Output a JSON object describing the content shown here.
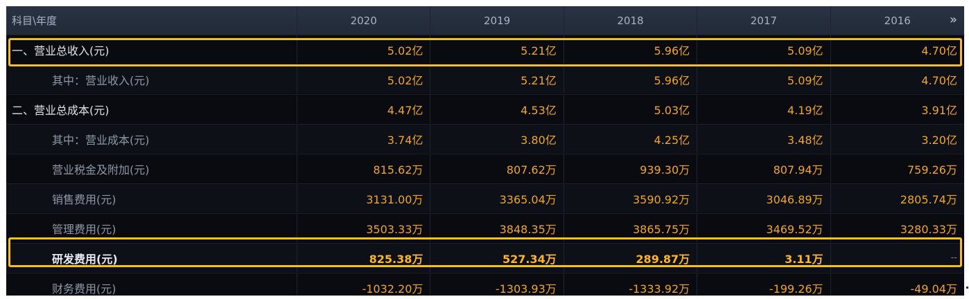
{
  "header": {
    "label": "科目\\年度",
    "years": [
      "2020",
      "2019",
      "2018",
      "2017",
      "2016"
    ],
    "more_icon": "»"
  },
  "rows": [
    {
      "label": "一、营业总收入(元)",
      "values": [
        "5.02亿",
        "5.21亿",
        "5.96亿",
        "5.09亿",
        "4.70亿"
      ]
    },
    {
      "label": "其中：营业收入(元)",
      "values": [
        "5.02亿",
        "5.21亿",
        "5.96亿",
        "5.09亿",
        "4.70亿"
      ]
    },
    {
      "label": "二、营业总成本(元)",
      "values": [
        "4.47亿",
        "4.53亿",
        "5.03亿",
        "4.19亿",
        "3.91亿"
      ]
    },
    {
      "label": "其中：营业成本(元)",
      "values": [
        "3.74亿",
        "3.80亿",
        "4.25亿",
        "3.48亿",
        "3.20亿"
      ]
    },
    {
      "label": "营业税金及附加(元)",
      "values": [
        "815.62万",
        "807.62万",
        "939.30万",
        "807.94万",
        "759.26万"
      ]
    },
    {
      "label": "销售费用(元)",
      "values": [
        "3131.00万",
        "3365.04万",
        "3590.92万",
        "3046.89万",
        "2805.74万"
      ]
    },
    {
      "label": "管理费用(元)",
      "values": [
        "3503.33万",
        "3848.35万",
        "3865.75万",
        "3469.52万",
        "3280.33万"
      ]
    },
    {
      "label": "研发费用(元)",
      "values": [
        "825.38万",
        "527.34万",
        "289.87万",
        "3.11万",
        "--"
      ]
    },
    {
      "label": "财务费用(元)",
      "values": [
        "-1032.20万",
        "-1303.93万",
        "-1333.92万",
        "-199.26万",
        "-49.04万"
      ]
    }
  ],
  "colors": {
    "background": "#0a0b10",
    "header_bg": "#262f3e",
    "value": "#f2a623",
    "highlight_border": "#f4c020"
  }
}
